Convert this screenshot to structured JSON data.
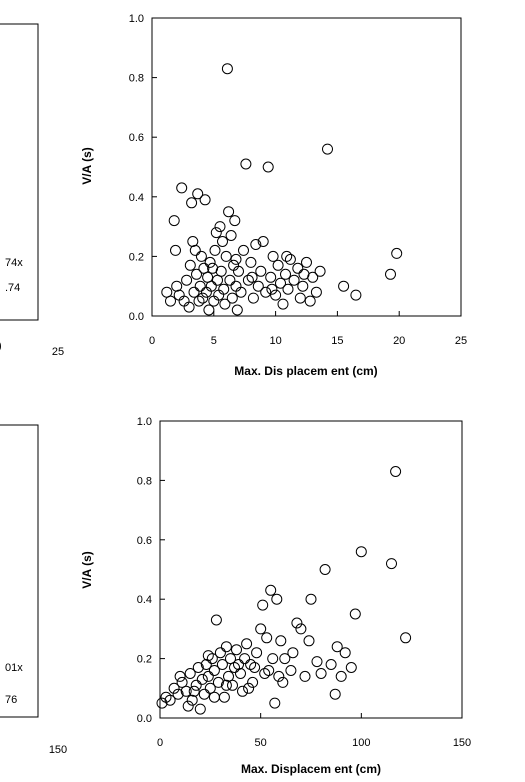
{
  "chart_data": [
    {
      "type": "box",
      "panel": "top-left",
      "title": "",
      "annotations": [
        "74x",
        ".74"
      ],
      "x_tick_labels": [
        "25"
      ]
    },
    {
      "type": "scatter",
      "panel": "top-right",
      "title": "",
      "xlabel": "Max. Dis placem ent (cm)",
      "ylabel": "V/A (s)",
      "xlim": [
        0,
        25
      ],
      "ylim": [
        0,
        1.0
      ],
      "x_tick_labels": [
        "0",
        "5",
        "10",
        "15",
        "20",
        "25"
      ],
      "y_tick_labels": [
        "0.0",
        "0.2",
        "0.4",
        "0.6",
        "0.8",
        "1.0"
      ],
      "grid": false,
      "marker": "open-circle",
      "series": [
        {
          "points": [
            [
              1.2,
              0.08
            ],
            [
              1.5,
              0.05
            ],
            [
              1.8,
              0.32
            ],
            [
              1.9,
              0.22
            ],
            [
              2.2,
              0.07
            ],
            [
              2.4,
              0.43
            ],
            [
              2.6,
              0.05
            ],
            [
              2.8,
              0.12
            ],
            [
              3.0,
              0.03
            ],
            [
              3.1,
              0.17
            ],
            [
              3.2,
              0.38
            ],
            [
              3.4,
              0.08
            ],
            [
              3.5,
              0.22
            ],
            [
              3.6,
              0.14
            ],
            [
              3.7,
              0.41
            ],
            [
              3.8,
              0.05
            ],
            [
              3.9,
              0.1
            ],
            [
              4.0,
              0.2
            ],
            [
              4.1,
              0.06
            ],
            [
              4.2,
              0.16
            ],
            [
              4.3,
              0.39
            ],
            [
              4.4,
              0.08
            ],
            [
              4.5,
              0.13
            ],
            [
              4.6,
              0.02
            ],
            [
              4.7,
              0.18
            ],
            [
              4.8,
              0.1
            ],
            [
              5.0,
              0.05
            ],
            [
              5.1,
              0.22
            ],
            [
              5.2,
              0.28
            ],
            [
              5.3,
              0.12
            ],
            [
              5.4,
              0.07
            ],
            [
              5.5,
              0.3
            ],
            [
              5.6,
              0.15
            ],
            [
              5.7,
              0.25
            ],
            [
              5.8,
              0.09
            ],
            [
              5.9,
              0.04
            ],
            [
              6.0,
              0.2
            ],
            [
              6.1,
              0.83
            ],
            [
              6.2,
              0.35
            ],
            [
              6.3,
              0.12
            ],
            [
              6.4,
              0.27
            ],
            [
              6.5,
              0.06
            ],
            [
              6.6,
              0.17
            ],
            [
              6.7,
              0.32
            ],
            [
              6.8,
              0.1
            ],
            [
              6.9,
              0.02
            ],
            [
              7.0,
              0.15
            ],
            [
              7.2,
              0.08
            ],
            [
              7.4,
              0.22
            ],
            [
              7.6,
              0.51
            ],
            [
              7.8,
              0.12
            ],
            [
              8.0,
              0.18
            ],
            [
              8.2,
              0.06
            ],
            [
              8.4,
              0.24
            ],
            [
              8.6,
              0.1
            ],
            [
              8.8,
              0.15
            ],
            [
              9.0,
              0.25
            ],
            [
              9.2,
              0.08
            ],
            [
              9.4,
              0.5
            ],
            [
              9.6,
              0.13
            ],
            [
              9.8,
              0.2
            ],
            [
              10.0,
              0.07
            ],
            [
              10.2,
              0.17
            ],
            [
              10.4,
              0.11
            ],
            [
              10.6,
              0.04
            ],
            [
              10.8,
              0.14
            ],
            [
              11.0,
              0.09
            ],
            [
              11.2,
              0.19
            ],
            [
              11.5,
              0.12
            ],
            [
              11.8,
              0.16
            ],
            [
              12.0,
              0.06
            ],
            [
              12.2,
              0.1
            ],
            [
              12.5,
              0.18
            ],
            [
              12.8,
              0.05
            ],
            [
              13.0,
              0.13
            ],
            [
              13.3,
              0.08
            ],
            [
              13.6,
              0.15
            ],
            [
              14.2,
              0.56
            ],
            [
              15.5,
              0.1
            ],
            [
              16.5,
              0.07
            ],
            [
              19.3,
              0.14
            ],
            [
              19.8,
              0.21
            ],
            [
              2.0,
              0.1
            ],
            [
              3.3,
              0.25
            ],
            [
              4.9,
              0.16
            ],
            [
              6.8,
              0.19
            ],
            [
              8.1,
              0.13
            ],
            [
              9.7,
              0.09
            ],
            [
              10.9,
              0.2
            ],
            [
              12.3,
              0.14
            ]
          ]
        }
      ]
    },
    {
      "type": "box",
      "panel": "bottom-left",
      "title": "",
      "annotations": [
        "01x",
        "76"
      ],
      "x_tick_labels": [
        "150"
      ]
    },
    {
      "type": "scatter",
      "panel": "bottom-right",
      "title": "",
      "xlabel": "Max. Displacem ent (cm)",
      "ylabel": "V/A (s)",
      "xlim": [
        0,
        150
      ],
      "ylim": [
        0,
        1.0
      ],
      "x_tick_labels": [
        "0",
        "50",
        "100",
        "150"
      ],
      "y_tick_labels": [
        "0.0",
        "0.2",
        "0.4",
        "0.6",
        "0.8",
        "1.0"
      ],
      "grid": false,
      "marker": "open-circle",
      "series": [
        {
          "points": [
            [
              1,
              0.05
            ],
            [
              3,
              0.07
            ],
            [
              5,
              0.06
            ],
            [
              7,
              0.1
            ],
            [
              9,
              0.08
            ],
            [
              11,
              0.12
            ],
            [
              13,
              0.09
            ],
            [
              15,
              0.15
            ],
            [
              16,
              0.06
            ],
            [
              18,
              0.11
            ],
            [
              19,
              0.17
            ],
            [
              20,
              0.03
            ],
            [
              21,
              0.13
            ],
            [
              22,
              0.08
            ],
            [
              23,
              0.18
            ],
            [
              24,
              0.14
            ],
            [
              25,
              0.1
            ],
            [
              26,
              0.2
            ],
            [
              27,
              0.16
            ],
            [
              28,
              0.33
            ],
            [
              29,
              0.12
            ],
            [
              30,
              0.22
            ],
            [
              31,
              0.18
            ],
            [
              32,
              0.07
            ],
            [
              33,
              0.24
            ],
            [
              34,
              0.14
            ],
            [
              35,
              0.2
            ],
            [
              36,
              0.11
            ],
            [
              37,
              0.17
            ],
            [
              38,
              0.23
            ],
            [
              40,
              0.15
            ],
            [
              41,
              0.09
            ],
            [
              42,
              0.2
            ],
            [
              43,
              0.25
            ],
            [
              45,
              0.18
            ],
            [
              46,
              0.12
            ],
            [
              48,
              0.22
            ],
            [
              50,
              0.3
            ],
            [
              51,
              0.38
            ],
            [
              52,
              0.15
            ],
            [
              53,
              0.27
            ],
            [
              55,
              0.43
            ],
            [
              56,
              0.2
            ],
            [
              57,
              0.05
            ],
            [
              58,
              0.4
            ],
            [
              59,
              0.14
            ],
            [
              60,
              0.26
            ],
            [
              62,
              0.2
            ],
            [
              65,
              0.16
            ],
            [
              68,
              0.32
            ],
            [
              70,
              0.3
            ],
            [
              72,
              0.14
            ],
            [
              74,
              0.26
            ],
            [
              75,
              0.4
            ],
            [
              78,
              0.19
            ],
            [
              80,
              0.15
            ],
            [
              82,
              0.5
            ],
            [
              85,
              0.18
            ],
            [
              87,
              0.08
            ],
            [
              90,
              0.14
            ],
            [
              92,
              0.22
            ],
            [
              95,
              0.17
            ],
            [
              97,
              0.35
            ],
            [
              100,
              0.56
            ],
            [
              115,
              0.52
            ],
            [
              117,
              0.83
            ],
            [
              122,
              0.27
            ],
            [
              10,
              0.14
            ],
            [
              14,
              0.04
            ],
            [
              17,
              0.09
            ],
            [
              24,
              0.21
            ],
            [
              27,
              0.07
            ],
            [
              33,
              0.11
            ],
            [
              39,
              0.18
            ],
            [
              44,
              0.1
            ],
            [
              47,
              0.17
            ],
            [
              54,
              0.16
            ],
            [
              61,
              0.12
            ],
            [
              66,
              0.22
            ],
            [
              88,
              0.24
            ]
          ]
        }
      ]
    }
  ]
}
